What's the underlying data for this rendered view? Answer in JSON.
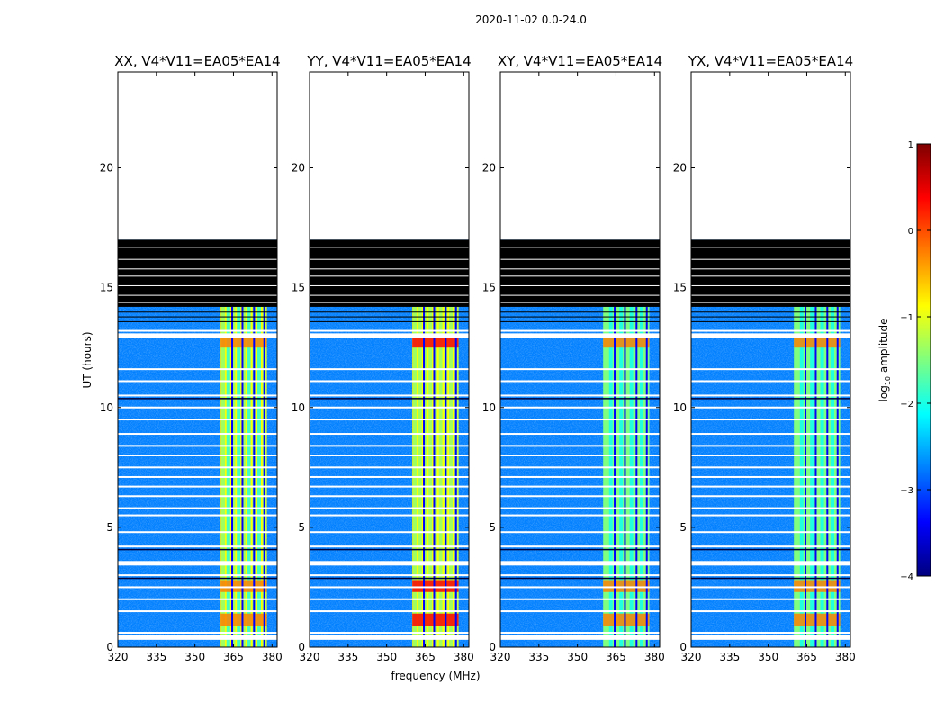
{
  "figure_title": "2020-11-02 0.0-24.0",
  "chart_data": {
    "type": "heatmap",
    "title": "2020-11-02 0.0-24.0",
    "xlabel": "frequency (MHz)",
    "ylabel": "UT (hours)",
    "xlim": [
      320,
      382
    ],
    "ylim": [
      0,
      24
    ],
    "xticks": [
      320,
      335,
      350,
      365,
      380
    ],
    "yticks": [
      0,
      5,
      10,
      15,
      20
    ],
    "panels": [
      {
        "title": "XX, V4*V11=EA05*EA14",
        "band_level": -1.1
      },
      {
        "title": "YY, V4*V11=EA05*EA14",
        "band_level": -0.9
      },
      {
        "title": "XY, V4*V11=EA05*EA14",
        "band_level": -1.2
      },
      {
        "title": "YX, V4*V11=EA05*EA14",
        "band_level": -1.3
      }
    ],
    "signal_band_mhz": [
      360,
      378
    ],
    "channel_gaps_mhz": [
      364.5,
      368.5,
      373,
      377
    ],
    "background_level": -3.0,
    "data_coverage_hours": [
      0,
      17
    ],
    "flagged_black_block_hours": [
      14.2,
      17
    ],
    "flagged_white_rows_hours": [
      0.4,
      0.6,
      1.5,
      2.0,
      2.5,
      3.0,
      3.5,
      3.55,
      4.2,
      4.8,
      5.5,
      5.8,
      6.3,
      6.7,
      7.1,
      7.5,
      8.0,
      8.4,
      8.9,
      9.5,
      10.0,
      10.5,
      11.1,
      11.6,
      13.0,
      13.2
    ],
    "colorbar": {
      "label": "log10 amplitude",
      "min": -4,
      "max": 1,
      "ticks": [
        1,
        0,
        -1,
        -2,
        -3,
        -4
      ],
      "colormap": "jet"
    }
  },
  "tick_labels": {
    "x": [
      "320",
      "335",
      "350",
      "365",
      "380"
    ],
    "y": [
      "0",
      "5",
      "10",
      "15",
      "20"
    ],
    "cbar": [
      "1",
      "0",
      "−1",
      "−2",
      "−3",
      "−4"
    ]
  },
  "colors": {
    "jet": [
      "#00007f",
      "#0000ff",
      "#007fff",
      "#00ffff",
      "#7fff7f",
      "#ffff00",
      "#ff7f00",
      "#ff0000",
      "#7f0000"
    ],
    "background": "#ffffff",
    "flag_black": "#000000"
  }
}
